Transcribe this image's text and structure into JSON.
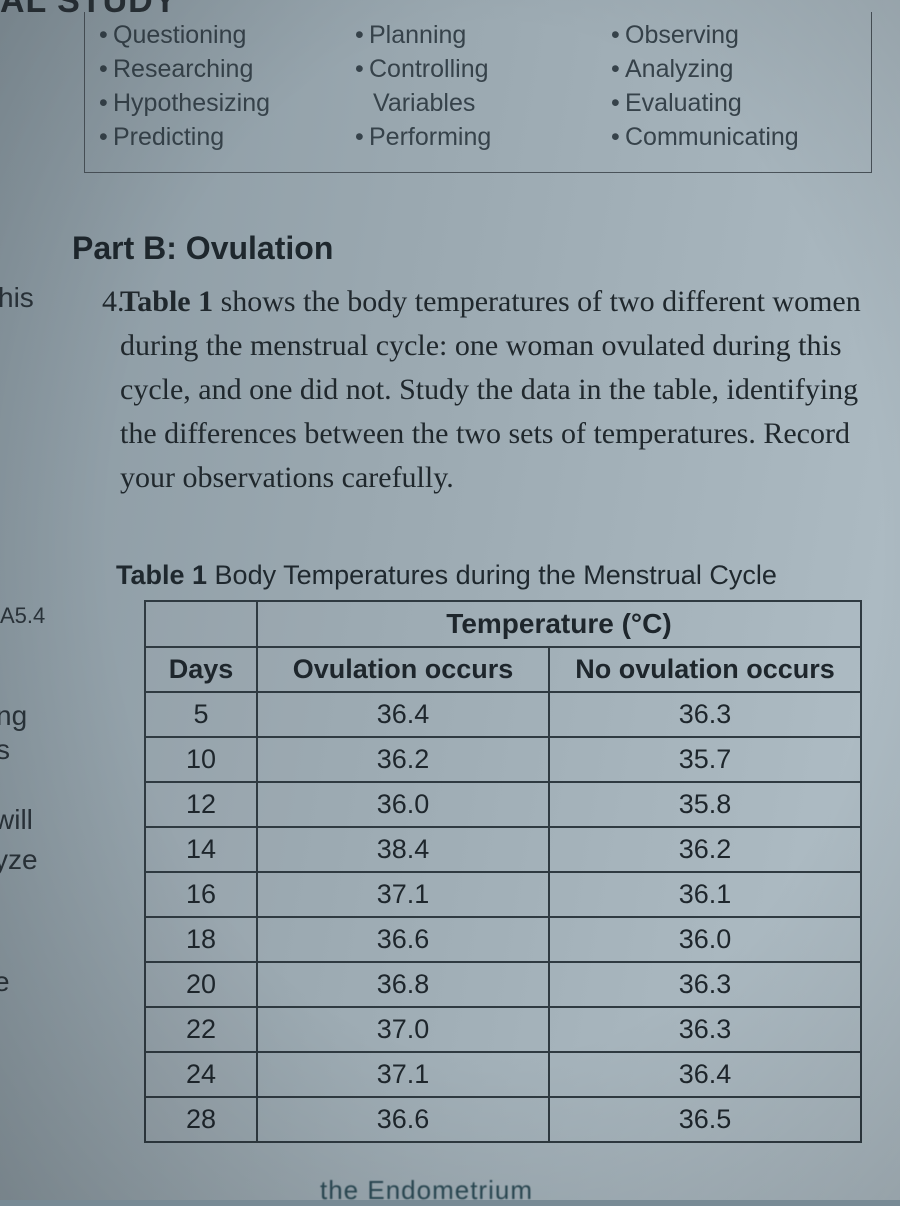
{
  "cutoff_top": "AL STUDY",
  "skills": {
    "col1": [
      "Questioning",
      "Researching",
      "Hypothesizing",
      "Predicting"
    ],
    "col2": [
      "Planning",
      "Controlling",
      "Variables",
      "Performing"
    ],
    "col2_bullets": [
      true,
      true,
      false,
      true
    ],
    "col3": [
      "Observing",
      "Analyzing",
      "Evaluating",
      "Communicating"
    ]
  },
  "part_title": "Part B: Ovulation",
  "left_fragments": {
    "his": "his",
    "a54": "A5.4",
    "ng": "ng",
    "s": "s",
    "will": "will",
    "yze": "yze",
    "e": "e"
  },
  "question": {
    "number": "4.",
    "text_html": "<b>Table 1</b> shows the body temperatures of two different women during the menstrual cycle: one woman ovulated during this cycle, and one did not. Study the data in the table, identifying the differences between the two sets of temperatures. Record your observations carefully."
  },
  "table": {
    "caption_bold": "Table 1",
    "caption_rest": "  Body Temperatures during the Menstrual Cycle",
    "merged_header": "Temperature (°C)",
    "columns": [
      "Days",
      "Ovulation occurs",
      "No ovulation occurs"
    ],
    "rows": [
      [
        "5",
        "36.4",
        "36.3"
      ],
      [
        "10",
        "36.2",
        "35.7"
      ],
      [
        "12",
        "36.0",
        "35.8"
      ],
      [
        "14",
        "38.4",
        "36.2"
      ],
      [
        "16",
        "37.1",
        "36.1"
      ],
      [
        "18",
        "36.6",
        "36.0"
      ],
      [
        "20",
        "36.8",
        "36.3"
      ],
      [
        "22",
        "37.0",
        "36.3"
      ],
      [
        "24",
        "37.1",
        "36.4"
      ],
      [
        "28",
        "36.6",
        "36.5"
      ]
    ]
  },
  "bottom_fragment": "the  Endometrium",
  "styling": {
    "page_bg_gradient": [
      "#8a99a2",
      "#9aa8b0",
      "#b0bec6"
    ],
    "text_color": "#1e272d",
    "border_color": "#2f3a41",
    "body_font": "Georgia",
    "ui_font": "Arial",
    "table_cell_fontsize": 27,
    "body_fontsize": 30,
    "part_title_fontsize": 32
  }
}
